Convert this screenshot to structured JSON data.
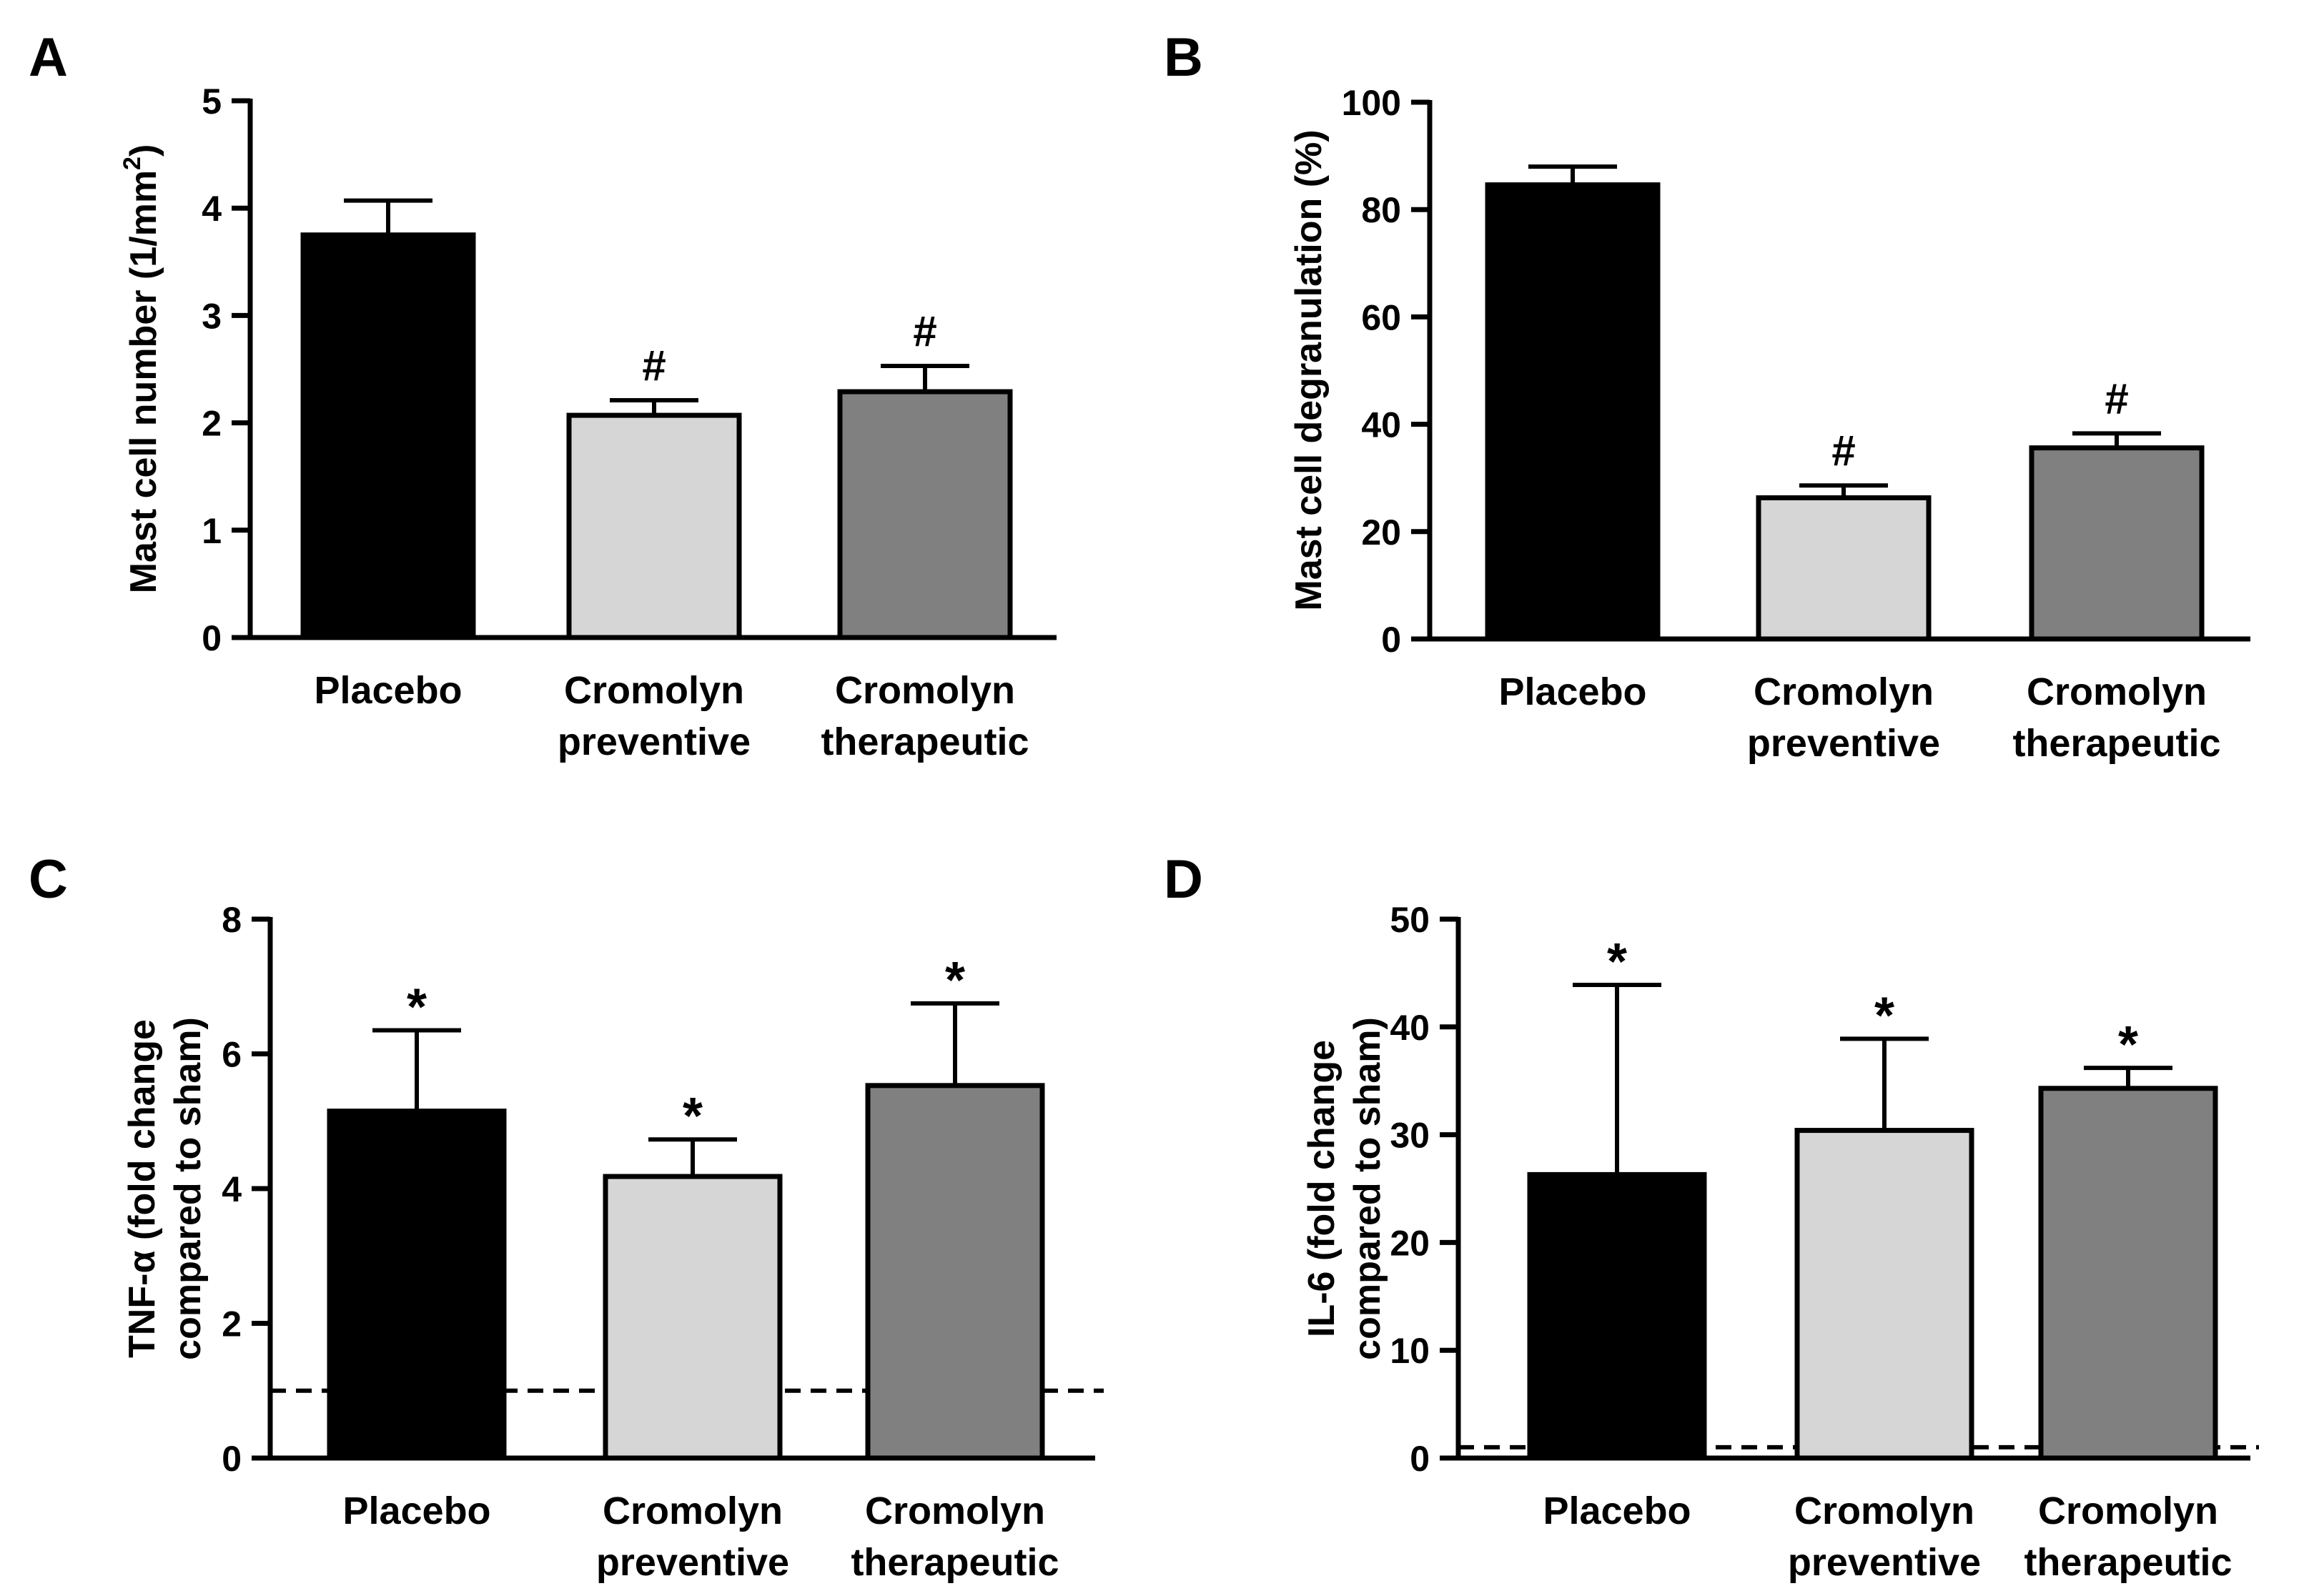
{
  "figure": {
    "colors": {
      "placebo": "#000000",
      "cromolyn_preventive": "#d6d6d6",
      "cromolyn_therapeutic": "#808080",
      "axis": "#000000"
    }
  },
  "chart_data": [
    {
      "panel": "A",
      "type": "bar",
      "title": "",
      "ylabel": "Mast cell number (1/mm²)",
      "ylabel_main": "Mast cell number (1/mm",
      "ylabel_sup": "2",
      "ylabel_end": ")",
      "ylim": [
        0,
        5
      ],
      "yticks": [
        "0",
        "1",
        "2",
        "3",
        "4",
        "5"
      ],
      "categories": [
        [
          "Placebo"
        ],
        [
          "Cromolyn",
          "preventive"
        ],
        [
          "Cromolyn",
          "therapeutic"
        ]
      ],
      "values": [
        3.75,
        2.07,
        2.29
      ],
      "errors": [
        0.32,
        0.14,
        0.24
      ],
      "annotations": [
        "",
        "#",
        "#"
      ],
      "reference_line": null
    },
    {
      "panel": "B",
      "type": "bar",
      "title": "",
      "ylabel": "Mast cell degranulation (%)",
      "ylim": [
        0,
        100
      ],
      "yticks": [
        "0",
        "20",
        "40",
        "60",
        "80",
        "100"
      ],
      "categories": [
        [
          "Placebo"
        ],
        [
          "Cromolyn",
          "preventive"
        ],
        [
          "Cromolyn",
          "therapeutic"
        ]
      ],
      "values": [
        84.6,
        26.3,
        35.6
      ],
      "errors": [
        3.4,
        2.3,
        2.7
      ],
      "annotations": [
        "",
        "#",
        "#"
      ],
      "reference_line": null
    },
    {
      "panel": "C",
      "type": "bar",
      "title": "",
      "ylabel": "TNF-α (fold change compared to sham)",
      "ylabel_lines": [
        "TNF-α (fold change",
        "compared to sham)"
      ],
      "ylim": [
        0,
        8
      ],
      "yticks": [
        "0",
        "2",
        "4",
        "6",
        "8"
      ],
      "categories": [
        [
          "Placebo"
        ],
        [
          "Cromolyn",
          "preventive"
        ],
        [
          "Cromolyn",
          "therapeutic"
        ]
      ],
      "values": [
        5.15,
        4.18,
        5.53
      ],
      "errors": [
        1.2,
        0.55,
        1.22
      ],
      "annotations": [
        "*",
        "*",
        "*"
      ],
      "reference_line": 1
    },
    {
      "panel": "D",
      "type": "bar",
      "title": "",
      "ylabel": "IL-6 (fold change compared to sham)",
      "ylabel_lines": [
        "IL-6 (fold change",
        "compared to sham)"
      ],
      "ylim": [
        0,
        50
      ],
      "yticks": [
        "0",
        "10",
        "20",
        "30",
        "40",
        "50"
      ],
      "categories": [
        [
          "Placebo"
        ],
        [
          "Cromolyn",
          "preventive"
        ],
        [
          "Cromolyn",
          "therapeutic"
        ]
      ],
      "values": [
        26.3,
        30.4,
        34.3
      ],
      "errors": [
        17.6,
        8.5,
        1.9
      ],
      "annotations": [
        "*",
        "*",
        "*"
      ],
      "reference_line": 1
    }
  ]
}
